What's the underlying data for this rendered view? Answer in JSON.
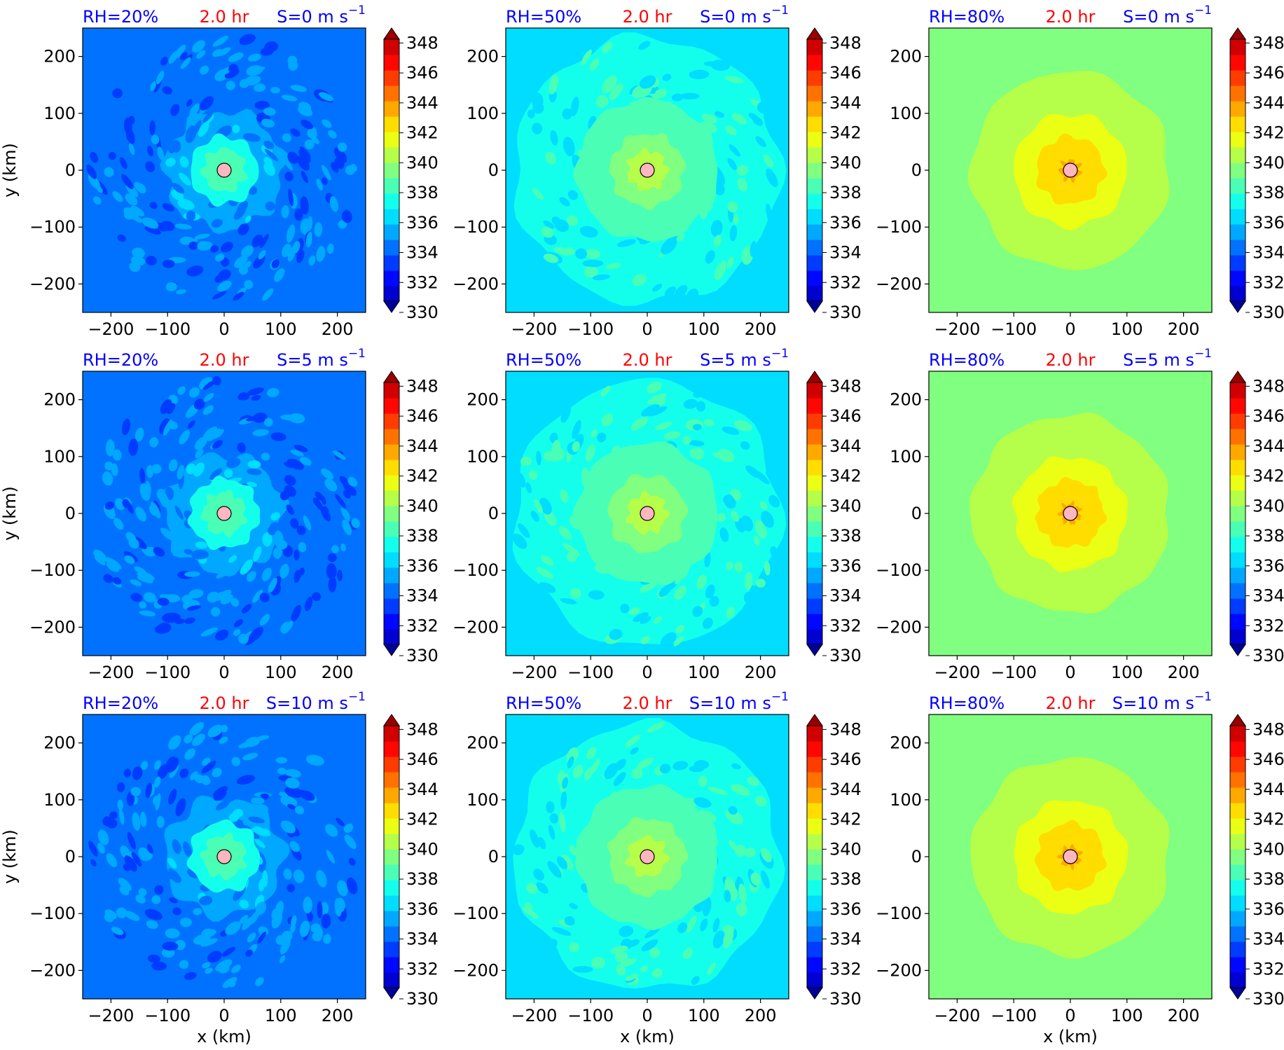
{
  "figure": {
    "colormap_name": "jet",
    "contour_levels": [
      330,
      331,
      332,
      333,
      334,
      335,
      336,
      337,
      338,
      339,
      340,
      341,
      342,
      343,
      344,
      345,
      346,
      347,
      348,
      349
    ],
    "colorbar_ticks": [
      "330",
      "332",
      "334",
      "336",
      "338",
      "340",
      "342",
      "344",
      "346",
      "348"
    ],
    "colorbar_extend": "both",
    "title_color_primary": "#0000ff",
    "title_color_time": "#ff0000",
    "center_marker_color": "#ffb6c1"
  },
  "chart_data": [
    {
      "type": "heatmap",
      "rh_label": "RH=20%",
      "time_label": "2.0 hr",
      "shear_label": "S=0 m s",
      "shear_exp": "−1",
      "xlabel": "",
      "ylabel": "y (km)",
      "xlim": [
        -250,
        250
      ],
      "ylim": [
        -250,
        250
      ],
      "xticks": [
        "−200",
        "−100",
        "0",
        "100",
        "200"
      ],
      "yticks": [
        "−200",
        "−100",
        "0",
        "100",
        "200"
      ],
      "background_value": 334.5,
      "rings": [
        {
          "radius_km": 105,
          "value": 335.5
        },
        {
          "radius_km": 60,
          "value": 337.5
        },
        {
          "radius_km": 38,
          "value": 338.5
        }
      ],
      "noise": "strong",
      "center": [
        0,
        0
      ]
    },
    {
      "type": "heatmap",
      "rh_label": "RH=50%",
      "time_label": "2.0 hr",
      "shear_label": "S=0 m s",
      "shear_exp": "−1",
      "xlabel": "",
      "ylabel": "",
      "xlim": [
        -250,
        250
      ],
      "ylim": [
        -250,
        250
      ],
      "xticks": [
        "−200",
        "−100",
        "0",
        "100",
        "200"
      ],
      "yticks": [
        "−200",
        "−100",
        "0",
        "100",
        "200"
      ],
      "background_value": 336.5,
      "rings": [
        {
          "radius_km": 235,
          "value": 337.5
        },
        {
          "radius_km": 125,
          "value": 338.5
        },
        {
          "radius_km": 65,
          "value": 339.5
        },
        {
          "radius_km": 35,
          "value": 340.5
        }
      ],
      "noise": "medium",
      "center": [
        0,
        0
      ]
    },
    {
      "type": "heatmap",
      "rh_label": "RH=80%",
      "time_label": "2.0 hr",
      "shear_label": "S=0 m s",
      "shear_exp": "−1",
      "xlabel": "",
      "ylabel": "",
      "xlim": [
        -250,
        250
      ],
      "ylim": [
        -250,
        250
      ],
      "xticks": [
        "−200",
        "−100",
        "0",
        "100",
        "200"
      ],
      "yticks": [
        "−200",
        "−100",
        "0",
        "100",
        "200"
      ],
      "background_value": 339.5,
      "rings": [
        {
          "radius_km": 175,
          "value": 340.5
        },
        {
          "radius_km": 100,
          "value": 341.5
        },
        {
          "radius_km": 60,
          "value": 342.5
        },
        {
          "radius_km": 18,
          "value": 343.5
        }
      ],
      "noise": "weak",
      "center": [
        0,
        0
      ]
    },
    {
      "type": "heatmap",
      "rh_label": "RH=20%",
      "time_label": "2.0 hr",
      "shear_label": "S=5 m s",
      "shear_exp": "−1",
      "xlabel": "",
      "ylabel": "y (km)",
      "xlim": [
        -250,
        250
      ],
      "ylim": [
        -250,
        250
      ],
      "xticks": [
        "−200",
        "−100",
        "0",
        "100",
        "200"
      ],
      "yticks": [
        "−200",
        "−100",
        "0",
        "100",
        "200"
      ],
      "background_value": 334.5,
      "rings": [
        {
          "radius_km": 105,
          "value": 335.5
        },
        {
          "radius_km": 62,
          "value": 337.5
        },
        {
          "radius_km": 38,
          "value": 338.5
        }
      ],
      "noise": "strong",
      "center": [
        0,
        0
      ]
    },
    {
      "type": "heatmap",
      "rh_label": "RH=50%",
      "time_label": "2.0 hr",
      "shear_label": "S=5 m s",
      "shear_exp": "−1",
      "xlabel": "",
      "ylabel": "",
      "xlim": [
        -250,
        250
      ],
      "ylim": [
        -250,
        250
      ],
      "xticks": [
        "−200",
        "−100",
        "0",
        "100",
        "200"
      ],
      "yticks": [
        "−200",
        "−100",
        "0",
        "100",
        "200"
      ],
      "background_value": 336.5,
      "rings": [
        {
          "radius_km": 235,
          "value": 337.5
        },
        {
          "radius_km": 125,
          "value": 338.5
        },
        {
          "radius_km": 68,
          "value": 339.5
        },
        {
          "radius_km": 35,
          "value": 340.5
        }
      ],
      "noise": "medium",
      "center": [
        0,
        0
      ]
    },
    {
      "type": "heatmap",
      "rh_label": "RH=80%",
      "time_label": "2.0 hr",
      "shear_label": "S=5 m s",
      "shear_exp": "−1",
      "xlabel": "",
      "ylabel": "",
      "xlim": [
        -250,
        250
      ],
      "ylim": [
        -250,
        250
      ],
      "xticks": [
        "−200",
        "−100",
        "0",
        "100",
        "200"
      ],
      "yticks": [
        "−200",
        "−100",
        "0",
        "100",
        "200"
      ],
      "background_value": 339.5,
      "rings": [
        {
          "radius_km": 175,
          "value": 340.5
        },
        {
          "radius_km": 100,
          "value": 341.5
        },
        {
          "radius_km": 60,
          "value": 342.5
        },
        {
          "radius_km": 18,
          "value": 343.5
        }
      ],
      "noise": "weak",
      "center": [
        0,
        0
      ]
    },
    {
      "type": "heatmap",
      "rh_label": "RH=20%",
      "time_label": "2.0 hr",
      "shear_label": "S=10 m s",
      "shear_exp": "−1",
      "xlabel": "x (km)",
      "ylabel": "y (km)",
      "xlim": [
        -250,
        250
      ],
      "ylim": [
        -250,
        250
      ],
      "xticks": [
        "−200",
        "−100",
        "0",
        "100",
        "200"
      ],
      "yticks": [
        "−200",
        "−100",
        "0",
        "100",
        "200"
      ],
      "background_value": 334.5,
      "rings": [
        {
          "radius_km": 105,
          "value": 335.5
        },
        {
          "radius_km": 62,
          "value": 337.5
        },
        {
          "radius_km": 38,
          "value": 338.5
        }
      ],
      "noise": "strong",
      "center": [
        0,
        0
      ]
    },
    {
      "type": "heatmap",
      "rh_label": "RH=50%",
      "time_label": "2.0 hr",
      "shear_label": "S=10 m s",
      "shear_exp": "−1",
      "xlabel": "x (km)",
      "ylabel": "",
      "xlim": [
        -250,
        250
      ],
      "ylim": [
        -250,
        250
      ],
      "xticks": [
        "−200",
        "−100",
        "0",
        "100",
        "200"
      ],
      "yticks": [
        "−200",
        "−100",
        "0",
        "100",
        "200"
      ],
      "background_value": 336.5,
      "rings": [
        {
          "radius_km": 235,
          "value": 337.5
        },
        {
          "radius_km": 125,
          "value": 338.5
        },
        {
          "radius_km": 68,
          "value": 339.5
        },
        {
          "radius_km": 35,
          "value": 340.5
        }
      ],
      "noise": "medium",
      "center": [
        0,
        0
      ]
    },
    {
      "type": "heatmap",
      "rh_label": "RH=80%",
      "time_label": "2.0 hr",
      "shear_label": "S=10 m s",
      "shear_exp": "−1",
      "xlabel": "x (km)",
      "ylabel": "",
      "xlim": [
        -250,
        250
      ],
      "ylim": [
        -250,
        250
      ],
      "xticks": [
        "−200",
        "−100",
        "0",
        "100",
        "200"
      ],
      "yticks": [
        "−200",
        "−100",
        "0",
        "100",
        "200"
      ],
      "background_value": 339.5,
      "rings": [
        {
          "radius_km": 175,
          "value": 340.5
        },
        {
          "radius_km": 100,
          "value": 341.5
        },
        {
          "radius_km": 60,
          "value": 342.5
        },
        {
          "radius_km": 18,
          "value": 343.5
        }
      ],
      "noise": "weak",
      "center": [
        0,
        0
      ]
    }
  ]
}
